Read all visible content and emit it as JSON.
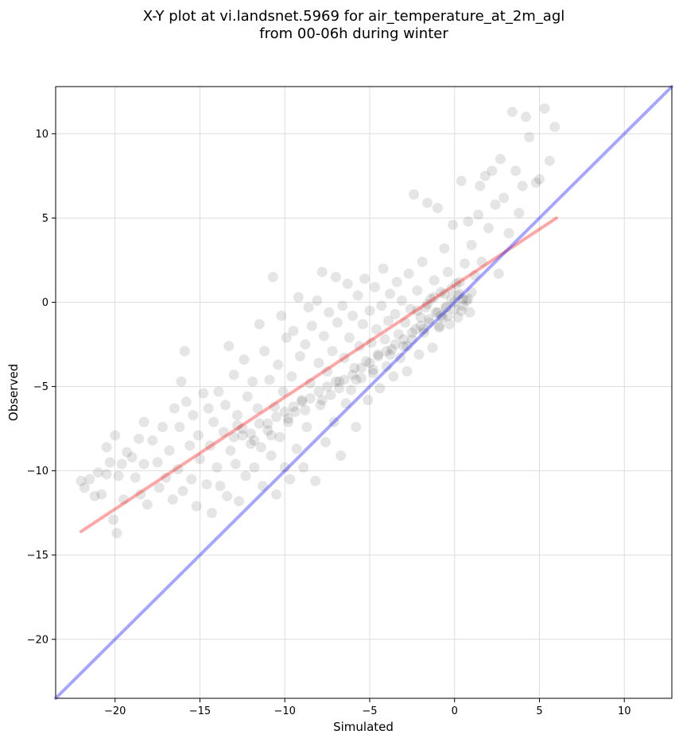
{
  "chart_data": {
    "type": "scatter",
    "title_line1": "X-Y plot at vi.landsnet.5969 for air_temperature_at_2m_agl",
    "title_line2": "from 00-06h during winter",
    "xlabel": "Simulated",
    "ylabel": "Observed",
    "xlim": [
      -23.5,
      12.8
    ],
    "ylim": [
      -23.5,
      12.8
    ],
    "xticks": [
      -20,
      -15,
      -10,
      -5,
      0,
      5,
      10
    ],
    "yticks": [
      -20,
      -15,
      -10,
      -5,
      0,
      5,
      10
    ],
    "xtick_labels": [
      "−20",
      "−15",
      "−10",
      "−5",
      "0",
      "5",
      "10"
    ],
    "ytick_labels": [
      "−20",
      "−15",
      "−10",
      "−5",
      "0",
      "5",
      "10"
    ],
    "grid": true,
    "point_color": "#000000",
    "point_alpha": 0.1,
    "series": [
      {
        "values": [
          [
            -22,
            -10.6
          ],
          [
            -21.8,
            -11
          ],
          [
            -21.5,
            -10.5
          ],
          [
            -21.2,
            -11.5
          ],
          [
            -21,
            -10.1
          ],
          [
            -20.8,
            -11.4
          ],
          [
            -20.5,
            -8.6
          ],
          [
            -20.5,
            -10.2
          ],
          [
            -20.3,
            -9.5
          ],
          [
            -20.1,
            -12.9
          ],
          [
            -19.9,
            -13.7
          ],
          [
            -20,
            -7.9
          ],
          [
            -19.8,
            -10.3
          ],
          [
            -19.6,
            -9.6
          ],
          [
            -19.5,
            -11.7
          ],
          [
            -19.3,
            -8.9
          ],
          [
            -19,
            -9.2
          ],
          [
            -18.8,
            -10.4
          ],
          [
            -18.6,
            -8.1
          ],
          [
            -18.5,
            -11.4
          ],
          [
            -18.3,
            -9.6
          ],
          [
            -18.1,
            -12
          ],
          [
            -18.3,
            -7.1
          ],
          [
            -17.8,
            -8.2
          ],
          [
            -17.5,
            -9.5
          ],
          [
            -17.4,
            -11
          ],
          [
            -17.2,
            -7.4
          ],
          [
            -17,
            -10.4
          ],
          [
            -16.8,
            -8.8
          ],
          [
            -16.6,
            -11.7
          ],
          [
            -16.5,
            -6.3
          ],
          [
            -16.3,
            -9.9
          ],
          [
            -16.2,
            -7.4
          ],
          [
            -16,
            -11.2
          ],
          [
            -15.9,
            -2.9
          ],
          [
            -16.1,
            -4.7
          ],
          [
            -15.8,
            -5.9
          ],
          [
            -15.6,
            -8.5
          ],
          [
            -15.5,
            -10.5
          ],
          [
            -15.4,
            -6.7
          ],
          [
            -15.2,
            -12.1
          ],
          [
            -15.1,
            -7.9
          ],
          [
            -15,
            -9.3
          ],
          [
            -14.8,
            -5.4
          ],
          [
            -14.6,
            -10.8
          ],
          [
            -14.5,
            -6.3
          ],
          [
            -14.4,
            -8.5
          ],
          [
            -14.3,
            -12.5
          ],
          [
            -14.2,
            -7.1
          ],
          [
            -14,
            -9.8
          ],
          [
            -13.9,
            -5.3
          ],
          [
            -13.8,
            -10.9
          ],
          [
            -13.6,
            -7.7
          ],
          [
            -13.5,
            -6.1
          ],
          [
            -13.4,
            -11.5
          ],
          [
            -13.3,
            -2.6
          ],
          [
            -13.2,
            -8.8
          ],
          [
            -13,
            -4.3
          ],
          [
            -12.9,
            -9.6
          ],
          [
            -12.8,
            -6.7
          ],
          [
            -12.7,
            -11.8
          ],
          [
            -12.5,
            -7.9
          ],
          [
            -12.4,
            -3.4
          ],
          [
            -12.3,
            -10.3
          ],
          [
            -12.2,
            -5.6
          ],
          [
            -12,
            -8.4
          ],
          [
            -11.9,
            -4.7
          ],
          [
            -11.8,
            -9.8
          ],
          [
            -11.6,
            -6.3
          ],
          [
            -11.5,
            -1.3
          ],
          [
            -11.4,
            -8.6
          ],
          [
            -11.3,
            -10.9
          ],
          [
            -11.2,
            -2.9
          ],
          [
            -11,
            -7.2
          ],
          [
            -10.9,
            -4.6
          ],
          [
            -10.8,
            -9.1
          ],
          [
            -10.7,
            1.5
          ],
          [
            -10.6,
            -6.2
          ],
          [
            -10.5,
            -11.4
          ],
          [
            -10.4,
            -3.7
          ],
          [
            -10.3,
            -8
          ],
          [
            -10.2,
            -0.8
          ],
          [
            -10.1,
            -5.3
          ],
          [
            -10,
            -9.8
          ],
          [
            -9.9,
            -2.1
          ],
          [
            -9.8,
            -7.1
          ],
          [
            -9.7,
            -10.5
          ],
          [
            -9.6,
            -4.4
          ],
          [
            -9.5,
            -1.7
          ],
          [
            -9.4,
            -6.5
          ],
          [
            -9.3,
            -8.7
          ],
          [
            -9.2,
            0.3
          ],
          [
            -9.1,
            -3.2
          ],
          [
            -9,
            -5.8
          ],
          [
            -8.9,
            -9.8
          ],
          [
            -8.8,
            -2.5
          ],
          [
            -8.7,
            -7.4
          ],
          [
            -8.6,
            -0.3
          ],
          [
            -8.5,
            -4.8
          ],
          [
            -8.4,
            -1.4
          ],
          [
            -8.2,
            -10.6
          ],
          [
            -8.1,
            0.1
          ],
          [
            -8,
            -3.6
          ],
          [
            -7.9,
            -6.1
          ],
          [
            -7.8,
            1.8
          ],
          [
            -7.7,
            -2
          ],
          [
            -7.6,
            -8.3
          ],
          [
            -7.5,
            -4.1
          ],
          [
            -7.4,
            -0.6
          ],
          [
            -7.3,
            -5.5
          ],
          [
            -7.2,
            -2.9
          ],
          [
            -7.1,
            -7.1
          ],
          [
            -7,
            1.5
          ],
          [
            -6.9,
            -1.2
          ],
          [
            -6.8,
            -4.7
          ],
          [
            -6.7,
            -9.1
          ],
          [
            -6.6,
            -0.2
          ],
          [
            -6.5,
            -3.3
          ],
          [
            -6.4,
            -6
          ],
          [
            -6.3,
            1.1
          ],
          [
            -6.2,
            -2.1
          ],
          [
            -6.1,
            -5.2
          ],
          [
            -6,
            -0.8
          ],
          [
            -5.9,
            -3.9
          ],
          [
            -5.8,
            -7.4
          ],
          [
            -5.7,
            0.4
          ],
          [
            -5.6,
            -2.6
          ],
          [
            -5.5,
            -4.5
          ],
          [
            -5.4,
            -1.3
          ],
          [
            -5.3,
            1.4
          ],
          [
            -5.2,
            -3.5
          ],
          [
            -5.1,
            -5.8
          ],
          [
            -5,
            -0.5
          ],
          [
            -4.9,
            -2.4
          ],
          [
            -4.8,
            -4.2
          ],
          [
            -4.7,
            0.9
          ],
          [
            -4.6,
            -1.6
          ],
          [
            -4.5,
            -3.1
          ],
          [
            -4.4,
            -5.1
          ],
          [
            -4.3,
            -0.2
          ],
          [
            -4.2,
            2
          ],
          [
            -4.1,
            -2.2
          ],
          [
            -4,
            -3.8
          ],
          [
            -3.9,
            -1.1
          ],
          [
            -3.8,
            0.5
          ],
          [
            -3.7,
            -2.8
          ],
          [
            -3.6,
            -4.4
          ],
          [
            -3.5,
            -0.7
          ],
          [
            -3.4,
            1.2
          ],
          [
            -3.3,
            -1.9
          ],
          [
            -3.2,
            -3.3
          ],
          [
            -3.1,
            0.1
          ],
          [
            -3,
            -2.6
          ],
          [
            -2.9,
            -1.2
          ],
          [
            -2.8,
            -4.1
          ],
          [
            -2.7,
            1.7
          ],
          [
            -2.6,
            -0.4
          ],
          [
            -2.5,
            -2.2
          ],
          [
            -2.4,
            6.4
          ],
          [
            -2.3,
            -1.6
          ],
          [
            -2.2,
            0.7
          ],
          [
            -2.1,
            -3.1
          ],
          [
            -2,
            -0.9
          ],
          [
            -1.9,
            2.4
          ],
          [
            -1.8,
            -1.8
          ],
          [
            -1.7,
            -0.3
          ],
          [
            -1.6,
            5.9
          ],
          [
            -1.5,
            -1.2
          ],
          [
            -1.4,
            0.2
          ],
          [
            -1.3,
            -2.7
          ],
          [
            -1.2,
            1.3
          ],
          [
            -1.1,
            -0.6
          ],
          [
            -1,
            5.6
          ],
          [
            -0.9,
            -1.5
          ],
          [
            -0.8,
            0.6
          ],
          [
            -0.7,
            -0.9
          ],
          [
            -0.6,
            3.2
          ],
          [
            -0.5,
            -0.3
          ],
          [
            -0.4,
            1.8
          ],
          [
            -0.3,
            -1.3
          ],
          [
            -0.2,
            0.2
          ],
          [
            -0.1,
            4.6
          ],
          [
            0,
            -0.4
          ],
          [
            0.1,
            1.1
          ],
          [
            0.2,
            -0.9
          ],
          [
            0.3,
            0.5
          ],
          [
            0.4,
            7.2
          ],
          [
            0.5,
            -0.2
          ],
          [
            0.6,
            2.3
          ],
          [
            0.7,
            0.1
          ],
          [
            0.8,
            4.8
          ],
          [
            0.9,
            -0.6
          ],
          [
            1,
            3.4
          ],
          [
            1.2,
            1.6
          ],
          [
            1.4,
            5.2
          ],
          [
            1.5,
            6.9
          ],
          [
            1.6,
            2.4
          ],
          [
            1.8,
            7.5
          ],
          [
            2,
            4.4
          ],
          [
            2.2,
            7.8
          ],
          [
            2.4,
            5.8
          ],
          [
            2.6,
            1.7
          ],
          [
            2.7,
            8.5
          ],
          [
            2.9,
            6.2
          ],
          [
            3.2,
            4.1
          ],
          [
            3.4,
            11.3
          ],
          [
            3.6,
            7.8
          ],
          [
            3.8,
            5.3
          ],
          [
            4,
            6.9
          ],
          [
            4.2,
            11
          ],
          [
            4.4,
            9.8
          ],
          [
            4.8,
            7.1
          ],
          [
            5,
            7.3
          ],
          [
            5.3,
            11.5
          ],
          [
            5.6,
            8.4
          ],
          [
            5.9,
            10.4
          ],
          [
            -12.5,
            -7.5
          ],
          [
            -12,
            -7.8
          ],
          [
            -11.5,
            -7.2
          ],
          [
            -11,
            -7.6
          ],
          [
            -10.5,
            -6.8
          ],
          [
            -10,
            -6.5
          ],
          [
            -9.5,
            -6.2
          ],
          [
            -9,
            -5.9
          ],
          [
            -8.5,
            -5.7
          ],
          [
            -8,
            -5.3
          ],
          [
            -7.5,
            -5
          ],
          [
            -7,
            -4.7
          ],
          [
            -6.5,
            -4.6
          ],
          [
            -6,
            -4.3
          ],
          [
            -5.5,
            -3.9
          ],
          [
            -5,
            -3.6
          ],
          [
            -4.5,
            -3.2
          ],
          [
            -4,
            -2.9
          ],
          [
            -3.5,
            -2.5
          ],
          [
            -3,
            -2.2
          ],
          [
            -2.5,
            -1.8
          ],
          [
            -2,
            -1.4
          ],
          [
            -1.5,
            -1
          ],
          [
            -1,
            -0.6
          ],
          [
            -0.5,
            -0.3
          ],
          [
            0,
            0
          ],
          [
            0.5,
            0.2
          ],
          [
            1,
            0.6
          ],
          [
            -13,
            -8
          ],
          [
            -12.8,
            -7.3
          ],
          [
            -11.8,
            -8.2
          ],
          [
            -10.8,
            -7.9
          ],
          [
            -9.8,
            -6.9
          ],
          [
            -8.8,
            -6.4
          ],
          [
            -7.8,
            -5.8
          ],
          [
            -6.8,
            -5.1
          ],
          [
            -5.8,
            -4.6
          ],
          [
            -4.8,
            -4
          ],
          [
            -3.8,
            -3.1
          ],
          [
            -2.8,
            -2.6
          ],
          [
            -1.8,
            -1.6
          ],
          [
            -0.8,
            -0.8
          ],
          [
            0.2,
            0.4
          ],
          [
            -1.2,
            0.3
          ],
          [
            -0.6,
            0.5
          ],
          [
            -0.2,
            0.8
          ],
          [
            0.3,
            1.2
          ],
          [
            -2.2,
            -0.5
          ],
          [
            -1.6,
            -0.1
          ],
          [
            -0.9,
            -1.4
          ],
          [
            -0.4,
            -0.8
          ],
          [
            0.4,
            -0.5
          ],
          [
            0.8,
            0.2
          ]
        ]
      }
    ],
    "lines": [
      {
        "name_hidden": "",
        "color": "#ff0000",
        "alpha": 0.35,
        "points": [
          [
            -22,
            -13.6
          ],
          [
            6,
            5
          ]
        ]
      },
      {
        "name_hidden": "",
        "color": "#0000ff",
        "alpha": 0.35,
        "points": [
          [
            -23.5,
            -23.5
          ],
          [
            12.8,
            12.8
          ]
        ]
      }
    ]
  }
}
